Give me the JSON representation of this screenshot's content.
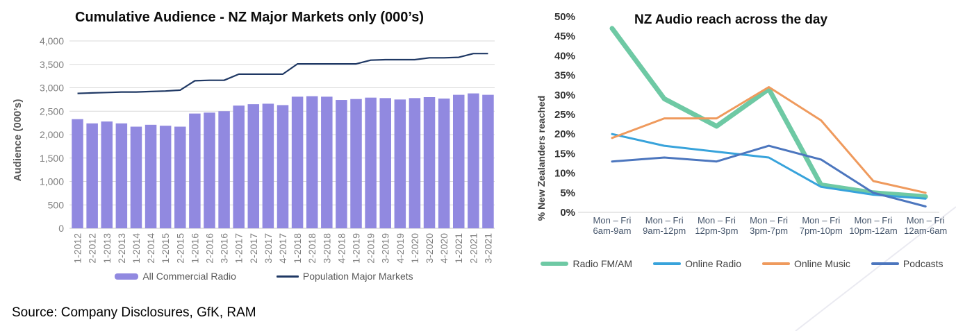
{
  "page": {
    "source_note": "Source: Company Disclosures, GfK, RAM"
  },
  "colors": {
    "bar_purple": "#9189E0",
    "population_navy": "#1F3864",
    "radio_green": "#6EC9A4",
    "online_radio_blue": "#38A3DB",
    "online_music_orange": "#EF9A5D",
    "podcasts_blue": "#4C76BE",
    "gridline": "#D9D9D9",
    "baseline": "#C6C6C6",
    "left_axis_text": "#7F7F7F",
    "left_axis_title": "#595959",
    "right_axis_text": "#333333",
    "right_xlabel_text": "#44546A",
    "right_axis_title": "#404040"
  },
  "chart_data": [
    {
      "type": "bar",
      "title": "Cumulative Audience - NZ Major Markets only (000’s)",
      "ylabel": "Audience (000’s)",
      "ylim": [
        0,
        4000
      ],
      "ytick_step": 500,
      "grid": true,
      "legend_position": "bottom",
      "categories": [
        "1-2012",
        "2-2012",
        "1-2013",
        "2-2013",
        "1-2014",
        "2-2014",
        "1-2015",
        "2-2015",
        "1-2016",
        "2-2016",
        "3-2016",
        "1-2017",
        "2-2017",
        "3-2017",
        "4-2017",
        "1-2018",
        "2-2018",
        "3-2018",
        "4-2018",
        "1-2019",
        "2-2019",
        "3-2019",
        "4-2019",
        "1-2020",
        "3-2020",
        "4-2020",
        "1-2021",
        "2-2021",
        "3-2021"
      ],
      "series": [
        {
          "name": "All Commercial Radio",
          "type": "bar",
          "color": "#9189E0",
          "values": [
            2330,
            2240,
            2280,
            2240,
            2170,
            2210,
            2190,
            2170,
            2450,
            2470,
            2500,
            2620,
            2650,
            2660,
            2630,
            2810,
            2820,
            2810,
            2740,
            2760,
            2790,
            2780,
            2750,
            2780,
            2800,
            2770,
            2850,
            2880,
            2850
          ]
        },
        {
          "name": "Population Major Markets",
          "type": "line",
          "color": "#1F3864",
          "values": [
            2880,
            2890,
            2900,
            2910,
            2910,
            2920,
            2930,
            2950,
            3150,
            3160,
            3160,
            3290,
            3290,
            3290,
            3290,
            3510,
            3510,
            3510,
            3510,
            3510,
            3590,
            3600,
            3600,
            3600,
            3640,
            3640,
            3650,
            3730,
            3730
          ]
        }
      ]
    },
    {
      "type": "line",
      "title": "NZ Audio reach across the day",
      "ylabel": "% New Zealanders reached",
      "ylim": [
        0,
        50
      ],
      "ytick_step": 5,
      "ytick_suffix": "%",
      "grid": false,
      "legend_position": "bottom",
      "categories": [
        {
          "line1": "Mon – Fri",
          "line2": "6am-9am"
        },
        {
          "line1": "Mon – Fri",
          "line2": "9am-12pm"
        },
        {
          "line1": "Mon – Fri",
          "line2": "12pm-3pm"
        },
        {
          "line1": "Mon – Fri",
          "line2": "3pm-7pm"
        },
        {
          "line1": "Mon – Fri",
          "line2": "7pm-10pm"
        },
        {
          "line1": "Mon – Fri",
          "line2": "10pm-12am"
        },
        {
          "line1": "Mon – Fri",
          "line2": "12am-6am"
        }
      ],
      "series": [
        {
          "name": "Radio FM/AM",
          "color": "#6EC9A4",
          "stroke_width": 7,
          "values": [
            47,
            29,
            22,
            31.5,
            7,
            5,
            4
          ]
        },
        {
          "name": "Online Radio",
          "color": "#38A3DB",
          "stroke_width": 3,
          "values": [
            20,
            17,
            15.5,
            14,
            6.5,
            4.5,
            3.5
          ]
        },
        {
          "name": "Online Music",
          "color": "#EF9A5D",
          "stroke_width": 3,
          "values": [
            19,
            24,
            24,
            32,
            23.5,
            8,
            5
          ]
        },
        {
          "name": "Podcasts",
          "color": "#4C76BE",
          "stroke_width": 3,
          "values": [
            13,
            14,
            13,
            17,
            13.5,
            5,
            1.5
          ]
        }
      ]
    }
  ]
}
